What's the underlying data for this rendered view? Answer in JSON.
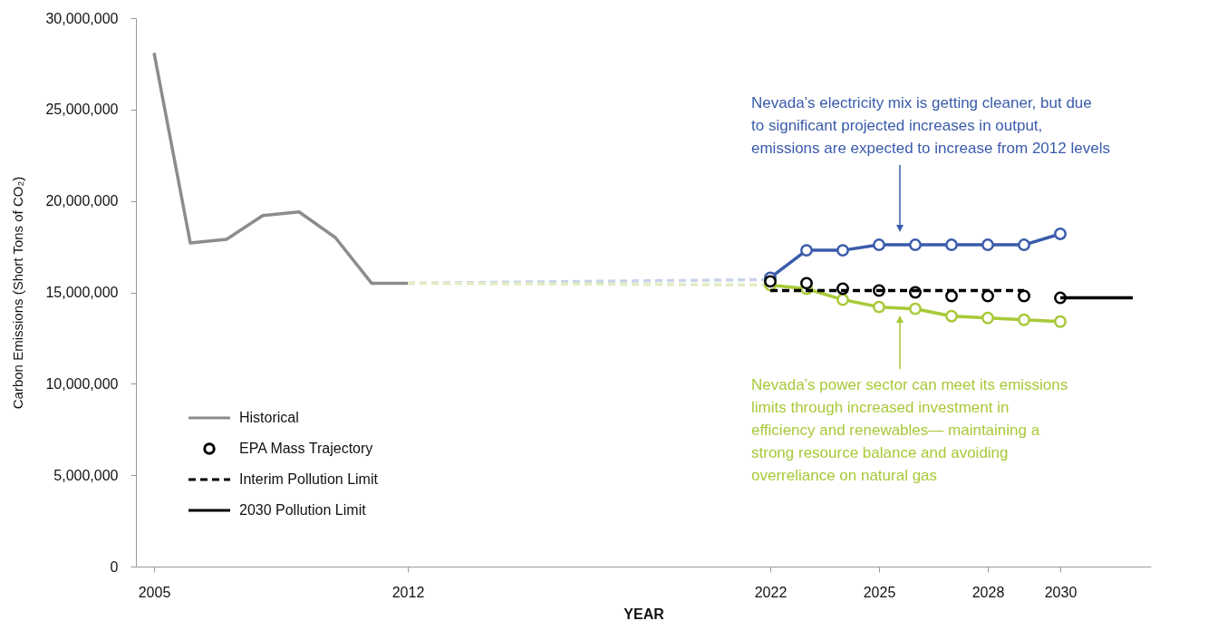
{
  "chart_data": {
    "type": "line",
    "xlabel": "YEAR",
    "ylabel": "Carbon Emissions (Short Tons of CO₂)",
    "xlim": [
      2004.5,
      2032.5
    ],
    "xticks": [
      2005,
      2012,
      2022,
      2025,
      2028,
      2030
    ],
    "ylim": [
      0,
      30000000
    ],
    "yticks": [
      0,
      {
        "value": 5000000,
        "label": "5,000,000"
      },
      {
        "value": 10000000,
        "label": "10,000,000"
      },
      {
        "value": 15000000,
        "label": "15,000,000"
      },
      {
        "value": 20000000,
        "label": "20,000,000"
      },
      {
        "value": 25000000,
        "label": "25,000,000"
      },
      {
        "value": 30000000,
        "label": "30,000,000"
      }
    ],
    "legend": "bottom left",
    "series": [
      {
        "color": "#c8d3ea",
        "line_style": "dashed",
        "x": [
          2012,
          2022
        ],
        "values": [
          15500000,
          15700000
        ]
      },
      {
        "color": "#e4edc3",
        "line_style": "dashed",
        "x": [
          2012,
          2022
        ],
        "values": [
          15500000,
          15400000
        ]
      },
      {
        "name": "Historical",
        "color": "#8c8c8c",
        "x": [
          2005,
          2006,
          2007,
          2008,
          2009,
          2010,
          2011,
          2012
        ],
        "values": [
          28100000,
          17700000,
          17900000,
          19200000,
          19400000,
          18000000,
          15500000,
          15500000
        ]
      },
      {
        "color": "#a8c938",
        "marker": "circle",
        "x": [
          2022,
          2023,
          2024,
          2025,
          2026,
          2027,
          2028,
          2029,
          2030
        ],
        "values": [
          15400000,
          15200000,
          14600000,
          14200000,
          14100000,
          13700000,
          13600000,
          13500000,
          13400000
        ]
      },
      {
        "color": "#3a5bab",
        "marker": "circle",
        "x": [
          2022,
          2023,
          2024,
          2025,
          2026,
          2027,
          2028,
          2029,
          2030
        ],
        "values": [
          15800000,
          17300000,
          17300000,
          17600000,
          17600000,
          17600000,
          17600000,
          17600000,
          18200000
        ]
      },
      {
        "name": "EPA Mass Trajectory",
        "type": "scatter",
        "marker": "circle",
        "color": "#000000",
        "x": [
          2022,
          2023,
          2024,
          2025,
          2026,
          2027,
          2028,
          2029,
          2030
        ],
        "values": [
          15600000,
          15500000,
          15200000,
          15100000,
          15000000,
          14800000,
          14800000,
          14800000,
          14700000
        ]
      },
      {
        "name": "Interim Pollution Limit",
        "color": "#000000",
        "line_style": "dashed",
        "x": [
          2022,
          2029
        ],
        "values": [
          15100000,
          15100000
        ]
      },
      {
        "name": "2030 Pollution Limit",
        "color": "#000000",
        "x": [
          2030,
          2032
        ],
        "values": [
          14700000,
          14700000
        ]
      }
    ],
    "annotations": [
      "Nevada’s electricity mix is getting cleaner, but due\nto significant projected increases in output,\nemissions are expected to increase from 2012 levels",
      "Nevada’s power sector can meet its emissions\nlimits through increased investment in\nefficiency and renewables— maintaining a\nstrong resource balance and avoiding\noverreliance on natural gas"
    ]
  }
}
